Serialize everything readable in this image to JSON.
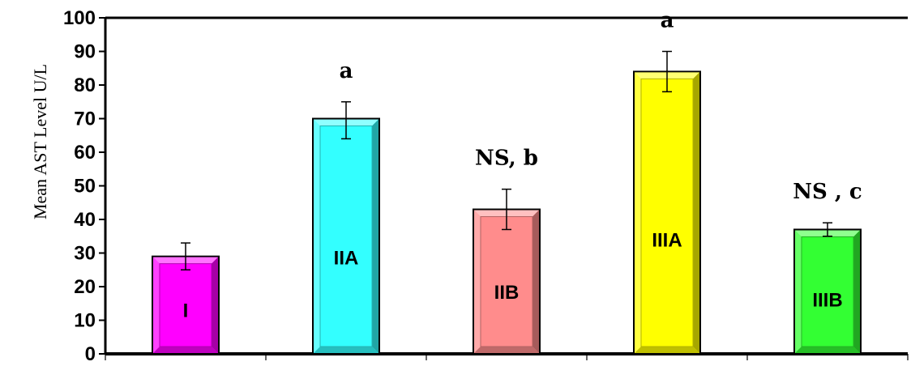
{
  "chart_data": {
    "type": "bar",
    "title": "",
    "xlabel": "",
    "ylabel": "Mean  AST  Level U/L",
    "ylim": [
      0,
      100
    ],
    "yticks": [
      0,
      10,
      20,
      30,
      40,
      50,
      60,
      70,
      80,
      90,
      100
    ],
    "categories": [
      "I",
      "IIA",
      "IIB",
      "IIIA",
      "IIIB"
    ],
    "values": [
      29,
      70,
      43,
      84,
      37
    ],
    "errors": [
      [
        25,
        33
      ],
      [
        64,
        75
      ],
      [
        37,
        49
      ],
      [
        78,
        90
      ],
      [
        35,
        39
      ]
    ],
    "colors": [
      "#ff00ff",
      "#33ffff",
      "#ff8c8c",
      "#ffff00",
      "#33ff33"
    ],
    "annotations": [
      "",
      "a",
      "NS, b",
      "a",
      "NS , c"
    ],
    "grid": false,
    "legend": "none"
  }
}
